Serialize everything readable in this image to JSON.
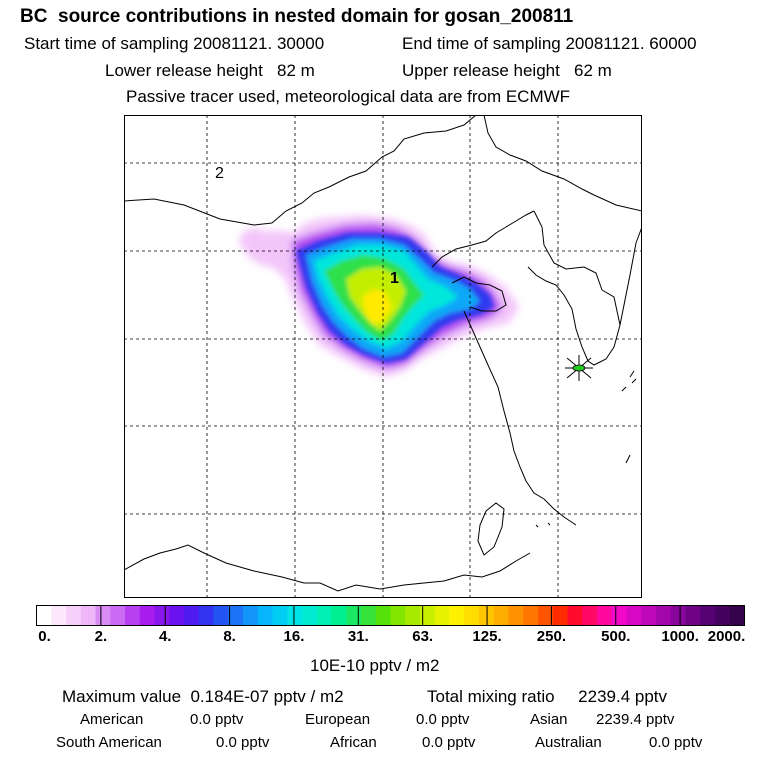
{
  "header": {
    "title": "BC  source contributions in nested domain for gosan_200811",
    "start_time": "Start time of sampling 20081121. 30000",
    "end_time": "End time of sampling 20081121. 60000",
    "lower_release": "Lower release height   82 m",
    "upper_release": "Upper release height   62 m",
    "tracer_note": "Passive tracer used, meteorological data are from ECMWF"
  },
  "map": {
    "labels": {
      "region1": "1",
      "region2": "2"
    },
    "receptor": "gosan-marker-icon"
  },
  "colorbar": {
    "tick_labels": [
      "0.",
      "2.",
      "4.",
      "8.",
      "16.",
      "31.",
      "63.",
      "125.",
      "250.",
      "500.",
      "1000.",
      "2000."
    ],
    "colors": [
      "#ffffff",
      "#fbe8fd",
      "#f6d0fb",
      "#efb6f8",
      "#d98cf5",
      "#cb6af3",
      "#b940f0",
      "#a61ded",
      "#8a16ee",
      "#6b10ef",
      "#4e1cf0",
      "#3333ef",
      "#2455f2",
      "#1a74f5",
      "#1195f7",
      "#07b5fa",
      "#00cdf2",
      "#00e3e6",
      "#00ecd2",
      "#00f0b5",
      "#00ef90",
      "#1ae864",
      "#34e23a",
      "#54e20a",
      "#82e600",
      "#a7ea00",
      "#c8ee00",
      "#e7f200",
      "#fff200",
      "#ffde00",
      "#ffc600",
      "#ffad00",
      "#ff9200",
      "#ff7600",
      "#ff5500",
      "#ff2c00",
      "#ff0a2c",
      "#ff0866",
      "#ff08a0",
      "#f208c8",
      "#d808c4",
      "#be08b8",
      "#a306aa",
      "#88049a",
      "#6e0386",
      "#560272",
      "#44025e",
      "#34014a"
    ],
    "units": "10E-10 pptv / m2"
  },
  "stats": {
    "max_value": "Maximum value  0.184E-07 pptv / m2",
    "total_mixing": "Total mixing ratio     2239.4 pptv",
    "regions": [
      {
        "name": "American",
        "value": "0.0 pptv"
      },
      {
        "name": "European",
        "value": "0.0 pptv"
      },
      {
        "name": "Asian",
        "value": "2239.4 pptv"
      },
      {
        "name": "South American",
        "value": "0.0 pptv"
      },
      {
        "name": "African",
        "value": "0.0 pptv"
      },
      {
        "name": "Australian",
        "value": "0.0 pptv"
      }
    ]
  }
}
